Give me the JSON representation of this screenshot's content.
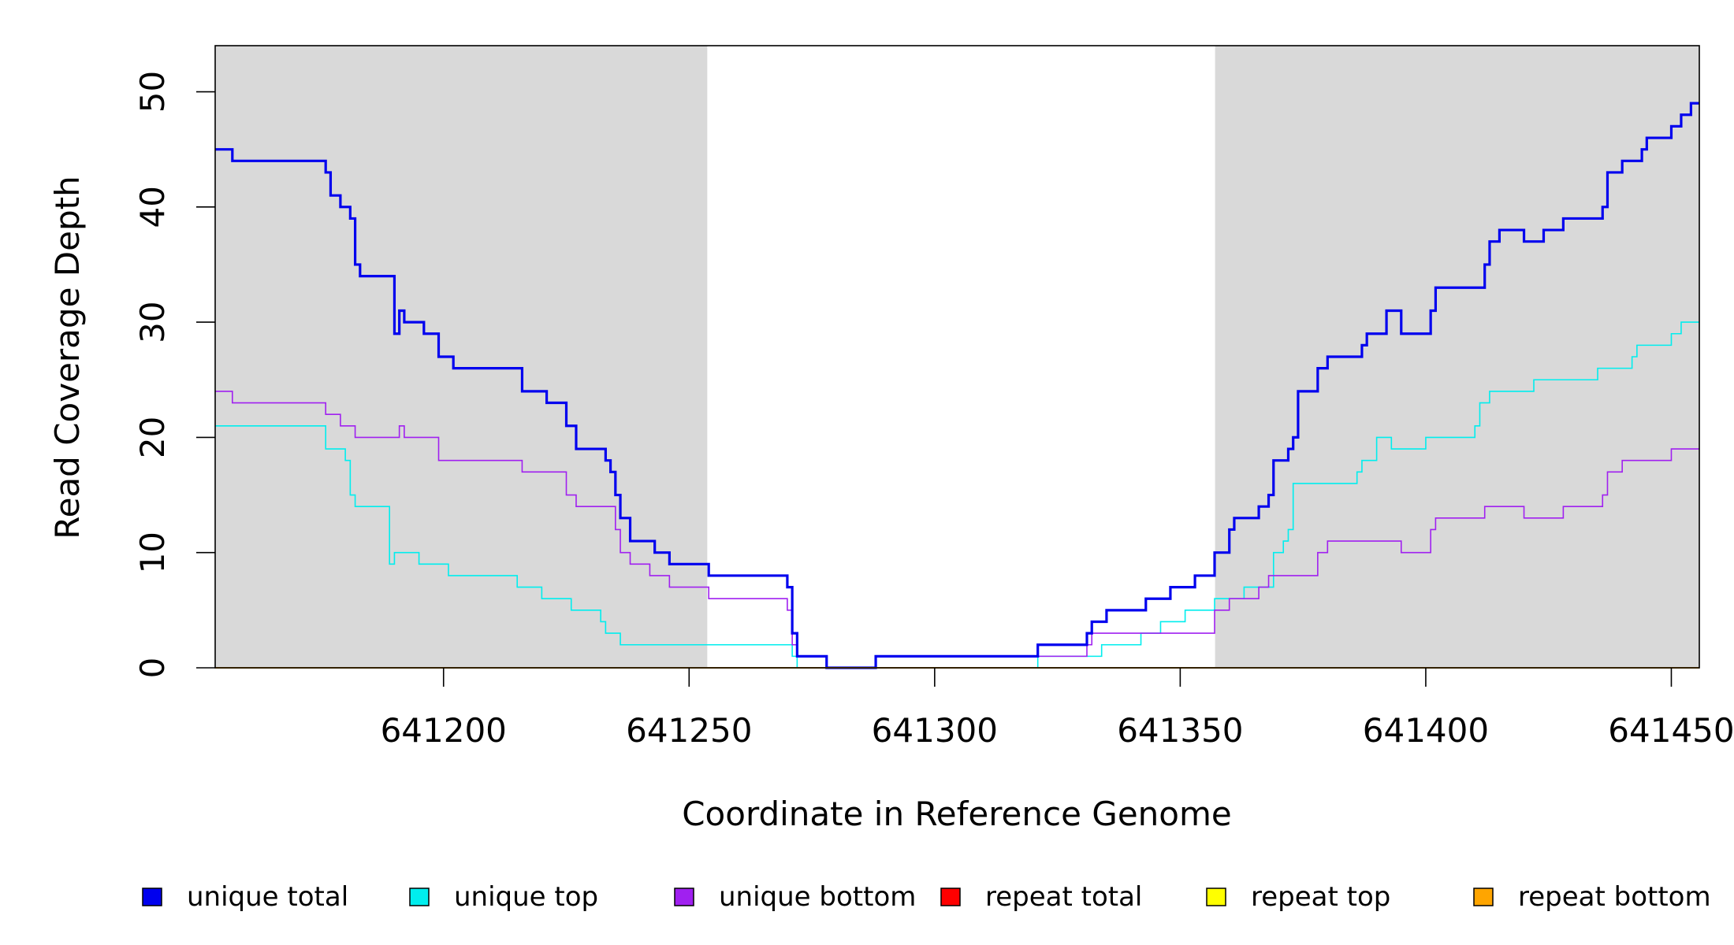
{
  "chart_data": {
    "type": "line",
    "xlabel": "Coordinate in Reference Genome",
    "ylabel": "Read Coverage Depth",
    "xlim": [
      641153.5,
      641455.7
    ],
    "ylim": [
      0,
      54
    ],
    "x_ticks": [
      "641200",
      "641250",
      "641300",
      "641350",
      "641400",
      "641450"
    ],
    "y_ticks": [
      "0",
      "10",
      "20",
      "30",
      "40",
      "50"
    ],
    "shaded_regions": [
      [
        641153.5,
        641253.7
      ],
      [
        641357.1,
        641455.7
      ]
    ],
    "shade_color": "#d9d9d9",
    "legend_position": "bottom",
    "series": [
      {
        "name": "unique total",
        "color": "#0000ee",
        "width": 3.2,
        "points": [
          [
            641153.5,
            45
          ],
          [
            641157,
            45
          ],
          [
            641157,
            44
          ],
          [
            641176,
            44
          ],
          [
            641176,
            43
          ],
          [
            641177,
            43
          ],
          [
            641177,
            41
          ],
          [
            641179,
            41
          ],
          [
            641179,
            40
          ],
          [
            641181,
            40
          ],
          [
            641181,
            39
          ],
          [
            641182,
            39
          ],
          [
            641182,
            35
          ],
          [
            641183,
            35
          ],
          [
            641183,
            34
          ],
          [
            641190,
            34
          ],
          [
            641190,
            29
          ],
          [
            641191,
            29
          ],
          [
            641191,
            31
          ],
          [
            641192,
            31
          ],
          [
            641192,
            30
          ],
          [
            641196,
            30
          ],
          [
            641196,
            29
          ],
          [
            641199,
            29
          ],
          [
            641199,
            27
          ],
          [
            641202,
            27
          ],
          [
            641202,
            26
          ],
          [
            641216,
            26
          ],
          [
            641216,
            24
          ],
          [
            641221,
            24
          ],
          [
            641221,
            23
          ],
          [
            641225,
            23
          ],
          [
            641225,
            21
          ],
          [
            641227,
            21
          ],
          [
            641227,
            19
          ],
          [
            641233,
            19
          ],
          [
            641233,
            18
          ],
          [
            641234,
            18
          ],
          [
            641234,
            17
          ],
          [
            641235,
            17
          ],
          [
            641235,
            15
          ],
          [
            641236,
            15
          ],
          [
            641236,
            13
          ],
          [
            641238,
            13
          ],
          [
            641238,
            11
          ],
          [
            641243,
            11
          ],
          [
            641243,
            10
          ],
          [
            641246,
            10
          ],
          [
            641246,
            9
          ],
          [
            641254,
            9
          ],
          [
            641254,
            8
          ],
          [
            641270,
            8
          ],
          [
            641270,
            7
          ],
          [
            641271,
            7
          ],
          [
            641271,
            3
          ],
          [
            641272,
            3
          ],
          [
            641272,
            1
          ],
          [
            641278,
            1
          ],
          [
            641278,
            0
          ],
          [
            641288,
            0
          ],
          [
            641288,
            1
          ],
          [
            641321,
            1
          ],
          [
            641321,
            2
          ],
          [
            641331,
            2
          ],
          [
            641331,
            3
          ],
          [
            641332,
            3
          ],
          [
            641332,
            4
          ],
          [
            641335,
            4
          ],
          [
            641335,
            5
          ],
          [
            641343,
            5
          ],
          [
            641343,
            6
          ],
          [
            641348,
            6
          ],
          [
            641348,
            7
          ],
          [
            641353,
            7
          ],
          [
            641353,
            8
          ],
          [
            641357,
            8
          ],
          [
            641357,
            10
          ],
          [
            641360,
            10
          ],
          [
            641360,
            12
          ],
          [
            641361,
            12
          ],
          [
            641361,
            13
          ],
          [
            641366,
            13
          ],
          [
            641366,
            14
          ],
          [
            641368,
            14
          ],
          [
            641368,
            15
          ],
          [
            641369,
            15
          ],
          [
            641369,
            18
          ],
          [
            641372,
            18
          ],
          [
            641372,
            19
          ],
          [
            641373,
            19
          ],
          [
            641373,
            20
          ],
          [
            641374,
            20
          ],
          [
            641374,
            24
          ],
          [
            641378,
            24
          ],
          [
            641378,
            26
          ],
          [
            641380,
            26
          ],
          [
            641380,
            27
          ],
          [
            641387,
            27
          ],
          [
            641387,
            28
          ],
          [
            641388,
            28
          ],
          [
            641388,
            29
          ],
          [
            641392,
            29
          ],
          [
            641392,
            31
          ],
          [
            641395,
            31
          ],
          [
            641395,
            29
          ],
          [
            641401,
            29
          ],
          [
            641401,
            31
          ],
          [
            641402,
            31
          ],
          [
            641402,
            33
          ],
          [
            641412,
            33
          ],
          [
            641412,
            35
          ],
          [
            641413,
            35
          ],
          [
            641413,
            37
          ],
          [
            641415,
            37
          ],
          [
            641415,
            38
          ],
          [
            641420,
            38
          ],
          [
            641420,
            37
          ],
          [
            641424,
            37
          ],
          [
            641424,
            38
          ],
          [
            641428,
            38
          ],
          [
            641428,
            39
          ],
          [
            641436,
            39
          ],
          [
            641436,
            40
          ],
          [
            641437,
            40
          ],
          [
            641437,
            43
          ],
          [
            641440,
            43
          ],
          [
            641440,
            44
          ],
          [
            641444,
            44
          ],
          [
            641444,
            45
          ],
          [
            641445,
            45
          ],
          [
            641445,
            46
          ],
          [
            641450,
            46
          ],
          [
            641450,
            47
          ],
          [
            641452,
            47
          ],
          [
            641452,
            48
          ],
          [
            641454,
            48
          ],
          [
            641454,
            49
          ],
          [
            641455.7,
            49
          ]
        ]
      },
      {
        "name": "unique top",
        "color": "#00eeee",
        "width": 1.6,
        "points": [
          [
            641153.5,
            21
          ],
          [
            641176,
            21
          ],
          [
            641176,
            19
          ],
          [
            641180,
            19
          ],
          [
            641180,
            18
          ],
          [
            641181,
            18
          ],
          [
            641181,
            15
          ],
          [
            641182,
            15
          ],
          [
            641182,
            14
          ],
          [
            641189,
            14
          ],
          [
            641189,
            9
          ],
          [
            641190,
            9
          ],
          [
            641190,
            10
          ],
          [
            641195,
            10
          ],
          [
            641195,
            9
          ],
          [
            641201,
            9
          ],
          [
            641201,
            8
          ],
          [
            641215,
            8
          ],
          [
            641215,
            7
          ],
          [
            641220,
            7
          ],
          [
            641220,
            6
          ],
          [
            641226,
            6
          ],
          [
            641226,
            5
          ],
          [
            641232,
            5
          ],
          [
            641232,
            4
          ],
          [
            641233,
            4
          ],
          [
            641233,
            3
          ],
          [
            641236,
            3
          ],
          [
            641236,
            2
          ],
          [
            641271,
            2
          ],
          [
            641271,
            1
          ],
          [
            641272,
            1
          ],
          [
            641272,
            0
          ],
          [
            641321,
            0
          ],
          [
            641321,
            1
          ],
          [
            641334,
            1
          ],
          [
            641334,
            2
          ],
          [
            641342,
            2
          ],
          [
            641342,
            3
          ],
          [
            641346,
            3
          ],
          [
            641346,
            4
          ],
          [
            641351,
            4
          ],
          [
            641351,
            5
          ],
          [
            641357,
            5
          ],
          [
            641357,
            6
          ],
          [
            641363,
            6
          ],
          [
            641363,
            7
          ],
          [
            641369,
            7
          ],
          [
            641369,
            10
          ],
          [
            641371,
            10
          ],
          [
            641371,
            11
          ],
          [
            641372,
            11
          ],
          [
            641372,
            12
          ],
          [
            641373,
            12
          ],
          [
            641373,
            16
          ],
          [
            641386,
            16
          ],
          [
            641386,
            17
          ],
          [
            641387,
            17
          ],
          [
            641387,
            18
          ],
          [
            641390,
            18
          ],
          [
            641390,
            20
          ],
          [
            641393,
            20
          ],
          [
            641393,
            19
          ],
          [
            641400,
            19
          ],
          [
            641400,
            20
          ],
          [
            641410,
            20
          ],
          [
            641410,
            21
          ],
          [
            641411,
            21
          ],
          [
            641411,
            23
          ],
          [
            641413,
            23
          ],
          [
            641413,
            24
          ],
          [
            641422,
            24
          ],
          [
            641422,
            25
          ],
          [
            641435,
            25
          ],
          [
            641435,
            26
          ],
          [
            641442,
            26
          ],
          [
            641442,
            27
          ],
          [
            641443,
            27
          ],
          [
            641443,
            28
          ],
          [
            641450,
            28
          ],
          [
            641450,
            29
          ],
          [
            641452,
            29
          ],
          [
            641452,
            30
          ],
          [
            641455.7,
            30
          ]
        ]
      },
      {
        "name": "unique bottom",
        "color": "#a020f0",
        "width": 1.6,
        "points": [
          [
            641153.5,
            24
          ],
          [
            641157,
            24
          ],
          [
            641157,
            23
          ],
          [
            641176,
            23
          ],
          [
            641176,
            22
          ],
          [
            641179,
            22
          ],
          [
            641179,
            21
          ],
          [
            641182,
            21
          ],
          [
            641182,
            20
          ],
          [
            641191,
            20
          ],
          [
            641191,
            21
          ],
          [
            641192,
            21
          ],
          [
            641192,
            20
          ],
          [
            641199,
            20
          ],
          [
            641199,
            18
          ],
          [
            641216,
            18
          ],
          [
            641216,
            17
          ],
          [
            641225,
            17
          ],
          [
            641225,
            15
          ],
          [
            641227,
            15
          ],
          [
            641227,
            14
          ],
          [
            641235,
            14
          ],
          [
            641235,
            12
          ],
          [
            641236,
            12
          ],
          [
            641236,
            10
          ],
          [
            641238,
            10
          ],
          [
            641238,
            9
          ],
          [
            641242,
            9
          ],
          [
            641242,
            8
          ],
          [
            641246,
            8
          ],
          [
            641246,
            7
          ],
          [
            641254,
            7
          ],
          [
            641254,
            6
          ],
          [
            641270,
            6
          ],
          [
            641270,
            5
          ],
          [
            641271,
            5
          ],
          [
            641271,
            2
          ],
          [
            641272,
            2
          ],
          [
            641272,
            1
          ],
          [
            641278,
            1
          ],
          [
            641278,
            0
          ],
          [
            641288,
            0
          ],
          [
            641288,
            1
          ],
          [
            641331,
            1
          ],
          [
            641331,
            2
          ],
          [
            641332,
            2
          ],
          [
            641332,
            3
          ],
          [
            641357,
            3
          ],
          [
            641357,
            5
          ],
          [
            641360,
            5
          ],
          [
            641360,
            6
          ],
          [
            641366,
            6
          ],
          [
            641366,
            7
          ],
          [
            641368,
            7
          ],
          [
            641368,
            8
          ],
          [
            641378,
            8
          ],
          [
            641378,
            10
          ],
          [
            641380,
            10
          ],
          [
            641380,
            11
          ],
          [
            641395,
            11
          ],
          [
            641395,
            10
          ],
          [
            641401,
            10
          ],
          [
            641401,
            12
          ],
          [
            641402,
            12
          ],
          [
            641402,
            13
          ],
          [
            641412,
            13
          ],
          [
            641412,
            14
          ],
          [
            641420,
            14
          ],
          [
            641420,
            13
          ],
          [
            641428,
            13
          ],
          [
            641428,
            14
          ],
          [
            641436,
            14
          ],
          [
            641436,
            15
          ],
          [
            641437,
            15
          ],
          [
            641437,
            17
          ],
          [
            641440,
            17
          ],
          [
            641440,
            18
          ],
          [
            641450,
            18
          ],
          [
            641450,
            19
          ],
          [
            641455.7,
            19
          ]
        ]
      },
      {
        "name": "repeat total",
        "color": "#ff0000",
        "width": 2,
        "points": [
          [
            641153.5,
            0
          ],
          [
            641455.7,
            0
          ]
        ]
      },
      {
        "name": "repeat top",
        "color": "#ffff00",
        "width": 2,
        "points": [
          [
            641153.5,
            0
          ],
          [
            641455.7,
            0
          ]
        ]
      },
      {
        "name": "repeat bottom",
        "color": "#ffa500",
        "width": 2,
        "points": [
          [
            641153.5,
            0
          ],
          [
            641455.7,
            0
          ]
        ]
      }
    ]
  }
}
